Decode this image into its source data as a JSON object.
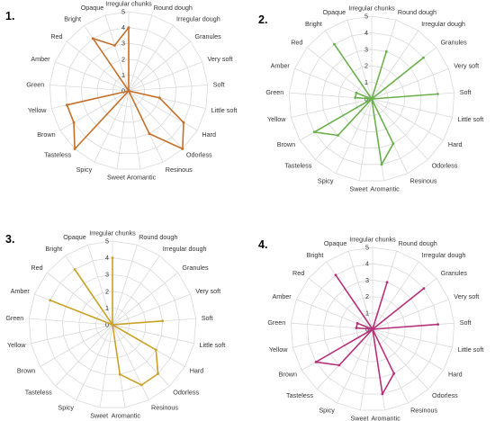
{
  "chart_data": [
    {
      "type": "radar",
      "panel_label": "1.",
      "color": "#c4702a",
      "axes": [
        "Irregular chunks",
        "Round dough",
        "Irregular dough",
        "Granules",
        "Very soft",
        "Soft",
        "Little soft",
        "Hard",
        "Odorless",
        "Resinous",
        "Aromantic",
        "Sweet",
        "Spicy",
        "Tasteless",
        "Brown",
        "Yellow",
        "Green",
        "Amber",
        "Red",
        "Bright",
        "Opaque"
      ],
      "ticks": [
        "0",
        "1",
        "2",
        "3",
        "4",
        "5"
      ],
      "rmax": 5,
      "values": [
        4,
        0,
        0,
        0,
        0,
        0,
        2,
        4,
        5,
        3,
        0,
        0,
        0,
        5,
        4,
        4,
        0,
        0,
        0,
        4,
        3
      ]
    },
    {
      "type": "radar",
      "panel_label": "2.",
      "color": "#6ab04c",
      "axes": [
        "Irregular chunks",
        "Round dough",
        "Irregular dough",
        "Granules",
        "Very soft",
        "Soft",
        "Little soft",
        "Hard",
        "Odorless",
        "Resinous",
        "Aromantic",
        "Sweet",
        "Spicy",
        "Tasteless",
        "Brown",
        "Yellow",
        "Green",
        "Amber",
        "Red",
        "Bright",
        "Opaque"
      ],
      "ticks": [
        "0",
        "1",
        "2",
        "3",
        "4",
        "5"
      ],
      "rmax": 5,
      "values": [
        0,
        3,
        0,
        4,
        0,
        4,
        0,
        0,
        0,
        3,
        4,
        0,
        0,
        3,
        4,
        0,
        1,
        1,
        0,
        4,
        0
      ]
    },
    {
      "type": "radar",
      "panel_label": "3.",
      "color": "#c9a227",
      "axes": [
        "Irregular chunks",
        "Round dough",
        "Irregular dough",
        "Granules",
        "Very soft",
        "Soft",
        "Little soft",
        "Hard",
        "Odorless",
        "Resinous",
        "Aromantic",
        "Sweet",
        "Spicy",
        "Tasteless",
        "Brown",
        "Yellow",
        "Green",
        "Amber",
        "Red",
        "Bright",
        "Opaque"
      ],
      "ticks": [
        "0",
        "1",
        "2",
        "3",
        "4",
        "5"
      ],
      "rmax": 5,
      "values": [
        4,
        0,
        0,
        0,
        0,
        3,
        0,
        3,
        4,
        4,
        3,
        0,
        0,
        0,
        0,
        0,
        0,
        4,
        0,
        4,
        0
      ]
    },
    {
      "type": "radar",
      "panel_label": "4.",
      "color": "#b5317a",
      "axes": [
        "Irregular chunks",
        "Round dough",
        "Irregular dough",
        "Granules",
        "Very soft",
        "Soft",
        "Little soft",
        "Hard",
        "Odorless",
        "Resinous",
        "Aromantic",
        "Sweet",
        "Spicy",
        "Tasteless",
        "Brown",
        "Yellow",
        "Green",
        "Amber",
        "Red",
        "Bright",
        "Opaque"
      ],
      "ticks": [
        "0",
        "1",
        "2",
        "3",
        "4",
        "5"
      ],
      "rmax": 5,
      "values": [
        0,
        3,
        0,
        4,
        0,
        4,
        0,
        0,
        0,
        3,
        4,
        0,
        0,
        3,
        4,
        0,
        1,
        1,
        0,
        4,
        0
      ]
    }
  ]
}
